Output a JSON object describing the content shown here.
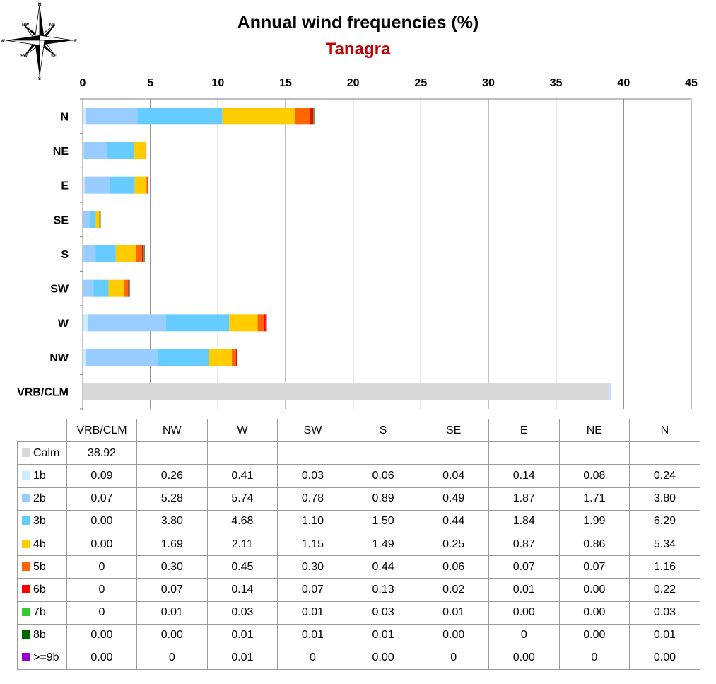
{
  "chart_data": {
    "type": "bar",
    "orientation": "horizontal",
    "stacked": true,
    "title": "Annual wind frequencies (%)",
    "subtitle": "Tanagra",
    "subtitle_color": "#c00000",
    "xlim": [
      0,
      45
    ],
    "x_ticks": [
      0,
      5,
      10,
      15,
      20,
      25,
      30,
      35,
      40,
      45
    ],
    "x_axis_position": "top",
    "grid": true,
    "categories": [
      "N",
      "NE",
      "E",
      "SE",
      "S",
      "SW",
      "W",
      "NW",
      "VRB/CLM"
    ],
    "series": [
      {
        "name": "Calm",
        "color": "#d9d9d9",
        "values": [
          null,
          null,
          null,
          null,
          null,
          null,
          null,
          null,
          38.92
        ]
      },
      {
        "name": "1b",
        "color": "#ccecff",
        "values": [
          0.24,
          0.08,
          0.14,
          0.04,
          0.06,
          0.03,
          0.41,
          0.26,
          0.09
        ]
      },
      {
        "name": "2b",
        "color": "#99ccff",
        "values": [
          3.8,
          1.71,
          1.87,
          0.49,
          0.89,
          0.78,
          5.74,
          5.28,
          0.07
        ]
      },
      {
        "name": "3b",
        "color": "#66ccff",
        "values": [
          6.29,
          1.99,
          1.84,
          0.44,
          1.5,
          1.1,
          4.68,
          3.8,
          0.0
        ]
      },
      {
        "name": "4b",
        "color": "#ffcc00",
        "values": [
          5.34,
          0.86,
          0.87,
          0.25,
          1.49,
          1.15,
          2.11,
          1.69,
          0.0
        ]
      },
      {
        "name": "5b",
        "color": "#ff6600",
        "values": [
          1.16,
          0.07,
          0.07,
          0.06,
          0.44,
          0.3,
          0.45,
          0.3,
          0
        ]
      },
      {
        "name": "6b",
        "color": "#ff0000",
        "values": [
          0.22,
          0.0,
          0.01,
          0.02,
          0.13,
          0.07,
          0.14,
          0.07,
          0
        ]
      },
      {
        "name": "7b",
        "color": "#33cc33",
        "values": [
          0.03,
          0.0,
          0.0,
          0.01,
          0.03,
          0.01,
          0.03,
          0.01,
          0
        ]
      },
      {
        "name": "8b",
        "color": "#006600",
        "values": [
          0.01,
          0.0,
          0,
          0.0,
          0.01,
          0.01,
          0.01,
          0.0,
          0.0
        ]
      },
      {
        "name": ">=9b",
        "color": "#9900cc",
        "values": [
          0.0,
          0,
          0.0,
          0,
          0.0,
          0,
          0.01,
          0,
          0.0
        ]
      }
    ]
  },
  "compass": {
    "icon": "compass-rose-icon",
    "labels": [
      "N",
      "NE",
      "E",
      "SE",
      "S",
      "SW",
      "W",
      "NW"
    ]
  },
  "table": {
    "columns": [
      "VRB/CLM",
      "NW",
      "W",
      "SW",
      "S",
      "SE",
      "E",
      "NE",
      "N"
    ],
    "rows": [
      {
        "label": "Calm",
        "color": "#d9d9d9",
        "cells": [
          "38.92",
          "",
          "",
          "",
          "",
          "",
          "",
          "",
          ""
        ]
      },
      {
        "label": "1b",
        "color": "#ccecff",
        "cells": [
          "0.09",
          "0.26",
          "0.41",
          "0.03",
          "0.06",
          "0.04",
          "0.14",
          "0.08",
          "0.24"
        ]
      },
      {
        "label": "2b",
        "color": "#99ccff",
        "cells": [
          "0.07",
          "5.28",
          "5.74",
          "0.78",
          "0.89",
          "0.49",
          "1.87",
          "1.71",
          "3.80"
        ]
      },
      {
        "label": "3b",
        "color": "#66ccff",
        "cells": [
          "0.00",
          "3.80",
          "4.68",
          "1.10",
          "1.50",
          "0.44",
          "1.84",
          "1.99",
          "6.29"
        ]
      },
      {
        "label": "4b",
        "color": "#ffcc00",
        "cells": [
          "0.00",
          "1.69",
          "2.11",
          "1.15",
          "1.49",
          "0.25",
          "0.87",
          "0.86",
          "5.34"
        ]
      },
      {
        "label": "5b",
        "color": "#ff6600",
        "cells": [
          "0",
          "0.30",
          "0.45",
          "0.30",
          "0.44",
          "0.06",
          "0.07",
          "0.07",
          "1.16"
        ]
      },
      {
        "label": "6b",
        "color": "#ff0000",
        "cells": [
          "0",
          "0.07",
          "0.14",
          "0.07",
          "0.13",
          "0.02",
          "0.01",
          "0.00",
          "0.22"
        ]
      },
      {
        "label": "7b",
        "color": "#33cc33",
        "cells": [
          "0",
          "0.01",
          "0.03",
          "0.01",
          "0.03",
          "0.01",
          "0.00",
          "0.00",
          "0.03"
        ]
      },
      {
        "label": "8b",
        "color": "#006600",
        "cells": [
          "0.00",
          "0.00",
          "0.01",
          "0.01",
          "0.01",
          "0.00",
          "0",
          "0.00",
          "0.01"
        ]
      },
      {
        "label": ">=9b",
        "color": "#9900cc",
        "cells": [
          "0.00",
          "0",
          "0.01",
          "0",
          "0.00",
          "0",
          "0.00",
          "0",
          "0.00"
        ]
      }
    ]
  }
}
